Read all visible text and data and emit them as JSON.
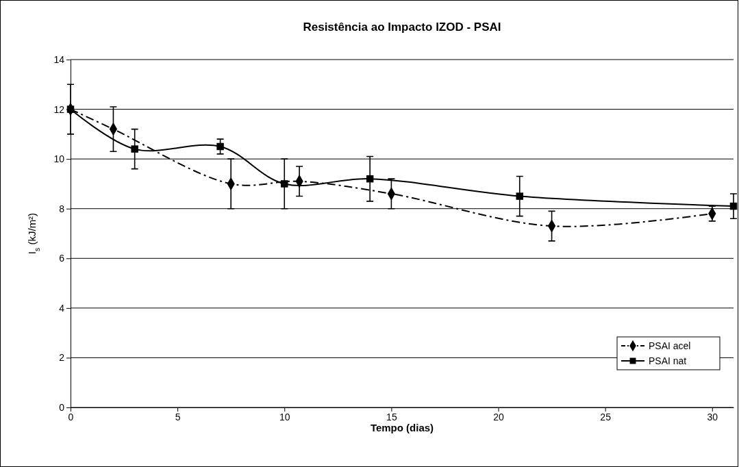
{
  "chart_data": {
    "type": "line",
    "title": "Resistência ao Impacto IZOD - PSAI",
    "xlabel": "Tempo (dias)",
    "ylabel": "I$_{s}$ (kJ/m²)",
    "xlim": [
      0,
      31
    ],
    "xticks": [
      0,
      5,
      10,
      15,
      20,
      25,
      30
    ],
    "ylim": [
      0,
      14
    ],
    "yticks": [
      0,
      2,
      4,
      6,
      8,
      10,
      12,
      14
    ],
    "grid": "y",
    "legend": "bottom right",
    "series": [
      {
        "name": "PSAI acel",
        "color": "#000000",
        "marker": "diamond",
        "line_style": "dashed",
        "x": [
          0,
          2,
          7.5,
          10.7,
          15,
          22.5,
          30
        ],
        "values": [
          12,
          11.2,
          9.0,
          9.1,
          8.6,
          7.3,
          7.8
        ],
        "errors": [
          null,
          0.9,
          1.0,
          0.6,
          0.6,
          0.6,
          0.3
        ]
      },
      {
        "name": "PSAI nat",
        "color": "#000000",
        "marker": "square",
        "line_style": "solid",
        "x": [
          0,
          3,
          7,
          10,
          14,
          21,
          31
        ],
        "values": [
          12,
          10.4,
          10.5,
          9.0,
          9.2,
          8.5,
          8.1
        ],
        "errors": [
          1.0,
          0.8,
          0.3,
          1.0,
          0.9,
          0.8,
          0.5
        ]
      }
    ]
  }
}
